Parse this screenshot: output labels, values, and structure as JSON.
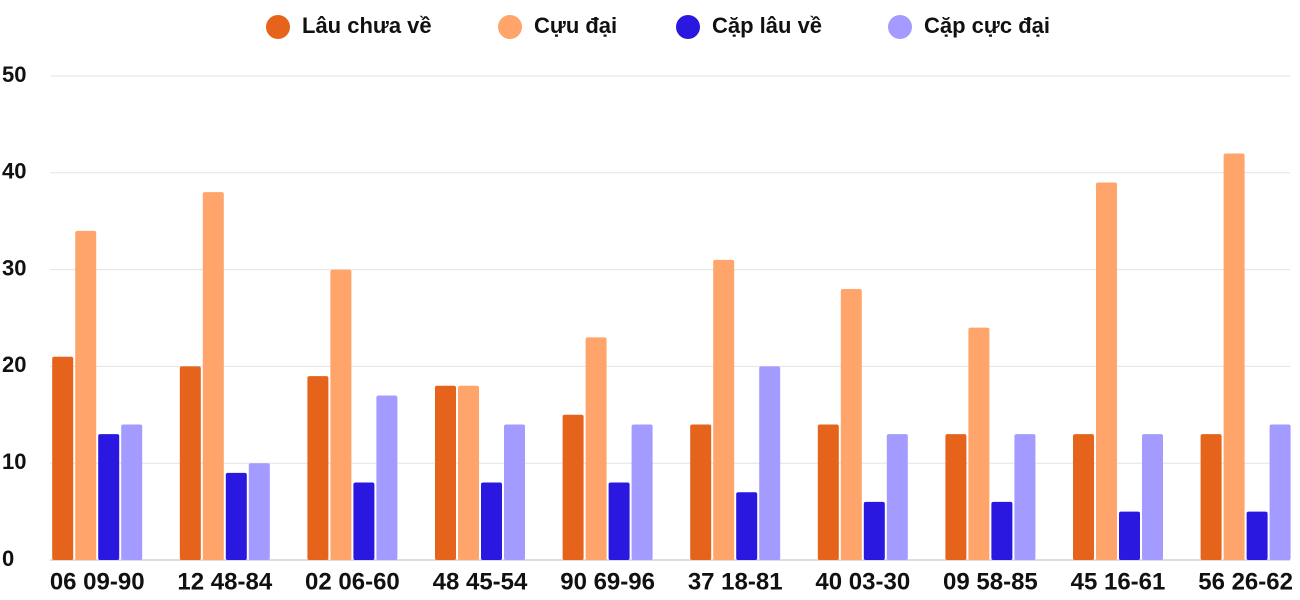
{
  "chart_data": {
    "type": "bar",
    "categories": [
      "06 09-90",
      "12 48-84",
      "02 06-60",
      "48 45-54",
      "90 69-96",
      "37 18-81",
      "40 03-30",
      "09 58-85",
      "45 16-61",
      "56 26-62"
    ],
    "series": [
      {
        "name": "Lâu chưa về",
        "color": "#e5631a",
        "values": [
          21,
          20,
          19,
          18,
          15,
          14,
          14,
          13,
          13,
          13
        ]
      },
      {
        "name": "Cựu đại",
        "color": "#ffa56b",
        "values": [
          34,
          38,
          30,
          18,
          23,
          31,
          28,
          24,
          39,
          42
        ]
      },
      {
        "name": "Cặp lâu về",
        "color": "#2a17e0",
        "values": [
          13,
          9,
          8,
          8,
          8,
          7,
          6,
          6,
          5,
          5
        ]
      },
      {
        "name": "Cặp cực đại",
        "color": "#a39bff",
        "values": [
          14,
          10,
          17,
          14,
          14,
          20,
          13,
          13,
          13,
          14
        ]
      }
    ],
    "ylim": [
      0,
      50
    ],
    "yticks": [
      0,
      10,
      20,
      30,
      40,
      50
    ],
    "grid": true,
    "legend": "top"
  }
}
